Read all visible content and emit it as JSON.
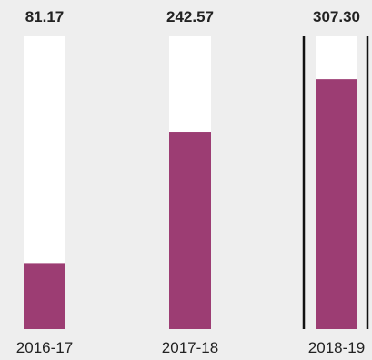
{
  "chart_data": {
    "type": "bar",
    "categories": [
      "2016-17",
      "2017-18",
      "2018-19"
    ],
    "values": [
      81.17,
      242.57,
      307.3
    ],
    "value_labels": [
      "81.17",
      "242.57",
      "307.30"
    ],
    "ylim": [
      0,
      360
    ],
    "highlighted_category": "2018-19",
    "grid": false,
    "legend": "none",
    "colors": {
      "bar": "#9c3d73",
      "track": "#ffffff",
      "background": "#eeeeee",
      "highlight_border": "#111111"
    }
  }
}
